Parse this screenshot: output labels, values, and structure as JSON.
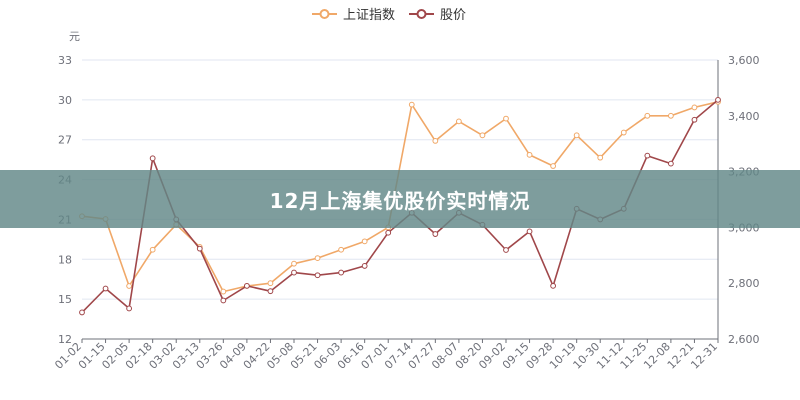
{
  "chart_data": {
    "type": "line",
    "title": "12月上海集优股价实时情况",
    "ylabel": "元",
    "x": [
      "01-02",
      "01-15",
      "02-05",
      "02-18",
      "03-02",
      "03-13",
      "03-26",
      "04-09",
      "04-22",
      "05-08",
      "05-21",
      "06-03",
      "06-16",
      "07-01",
      "07-14",
      "07-27",
      "08-07",
      "08-20",
      "09-02",
      "09-15",
      "09-28",
      "10-19",
      "10-30",
      "11-12",
      "11-25",
      "12-08",
      "12-21",
      "12-31"
    ],
    "left_axis": {
      "min": 12,
      "max": 33,
      "ticks": [
        12,
        15,
        18,
        21,
        24,
        27,
        30,
        33
      ]
    },
    "right_axis": {
      "min": 2600,
      "max": 3600,
      "ticks": [
        2600,
        2800,
        3000,
        3200,
        3400,
        3600
      ],
      "tick_labels": [
        "2,600",
        "2,800",
        "3,000",
        "3,200",
        "3,400",
        "3,600"
      ]
    },
    "series": [
      {
        "name": "上证指数",
        "axis": "right",
        "color": "#f0a868",
        "values": [
          3040,
          3030,
          2790,
          2920,
          3010,
          2930,
          2770,
          2790,
          2800,
          2870,
          2890,
          2920,
          2950,
          3000,
          3440,
          3310,
          3380,
          3330,
          3390,
          3260,
          3220,
          3330,
          3250,
          3340,
          3400,
          3400,
          3430,
          3450
        ]
      },
      {
        "name": "股价",
        "axis": "left",
        "color": "#a0474a",
        "values": [
          14.0,
          15.8,
          14.3,
          25.6,
          21.0,
          18.8,
          14.9,
          16.0,
          15.6,
          17.0,
          16.8,
          17.0,
          17.5,
          20.0,
          21.5,
          19.9,
          21.5,
          20.6,
          18.7,
          20.1,
          16.0,
          21.8,
          21.0,
          21.8,
          25.8,
          25.2,
          28.5,
          30.0
        ]
      }
    ]
  }
}
